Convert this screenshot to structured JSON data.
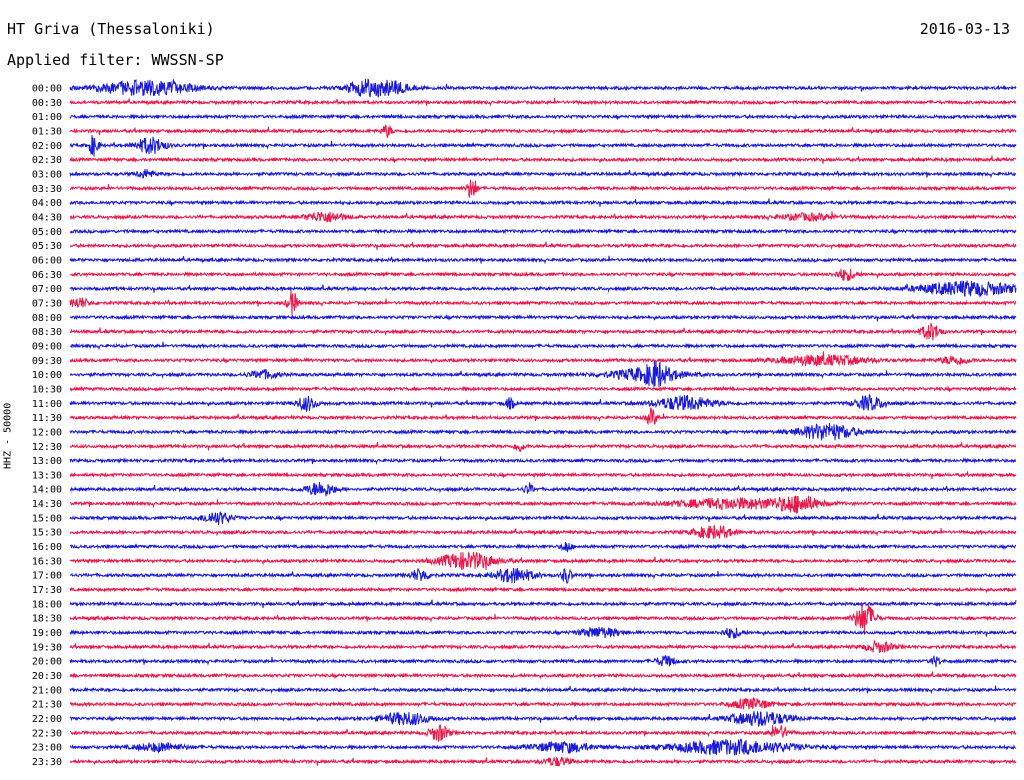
{
  "header": {
    "station": "HT Griva (Thessaloniki)",
    "date": "2016-03-13",
    "filter": "Applied filter: WWSSN-SP"
  },
  "axis": {
    "ylabel": "HHZ - 50000"
  },
  "colors": {
    "trace_a": "#1a1adc",
    "trace_b": "#f0184a"
  },
  "chart_data": {
    "type": "line",
    "description_type": "helicorder",
    "y_tick_labels": [
      "00:00",
      "00:30",
      "01:00",
      "01:30",
      "02:00",
      "02:30",
      "03:00",
      "03:30",
      "04:00",
      "04:30",
      "05:00",
      "05:30",
      "06:00",
      "06:30",
      "07:00",
      "07:30",
      "08:00",
      "08:30",
      "09:00",
      "09:30",
      "10:00",
      "10:30",
      "11:00",
      "11:30",
      "12:00",
      "12:30",
      "13:00",
      "13:30",
      "14:00",
      "14:30",
      "15:00",
      "15:30",
      "16:00",
      "16:30",
      "17:00",
      "17:30",
      "18:00",
      "18:30",
      "19:00",
      "19:30",
      "20:00",
      "20:30",
      "21:00",
      "21:30",
      "22:00",
      "22:30",
      "23:00",
      "23:30"
    ],
    "row_minutes": 30,
    "row_colors": [
      "#1a1adc",
      "#f0184a"
    ],
    "events": [
      {
        "row": 0,
        "t": 0.03,
        "amp": 7,
        "dur": 0.1
      },
      {
        "row": 0,
        "t": 0.29,
        "amp": 7,
        "dur": 0.04
      },
      {
        "row": 0,
        "t": 0.32,
        "amp": 6,
        "dur": 0.04
      },
      {
        "row": 3,
        "t": 0.33,
        "amp": 6,
        "dur": 0.01
      },
      {
        "row": 4,
        "t": 0.02,
        "amp": 10,
        "dur": 0.01
      },
      {
        "row": 4,
        "t": 0.07,
        "amp": 8,
        "dur": 0.03
      },
      {
        "row": 6,
        "t": 0.07,
        "amp": 4,
        "dur": 0.02
      },
      {
        "row": 7,
        "t": 0.42,
        "amp": 11,
        "dur": 0.01
      },
      {
        "row": 9,
        "t": 0.25,
        "amp": 5,
        "dur": 0.04
      },
      {
        "row": 9,
        "t": 0.75,
        "amp": 3,
        "dur": 0.06
      },
      {
        "row": 13,
        "t": 0.81,
        "amp": 6,
        "dur": 0.02
      },
      {
        "row": 14,
        "t": 0.9,
        "amp": 7,
        "dur": 0.1
      },
      {
        "row": 15,
        "t": 0.0,
        "amp": 5,
        "dur": 0.02
      },
      {
        "row": 15,
        "t": 0.23,
        "amp": 12,
        "dur": 0.01
      },
      {
        "row": 17,
        "t": 0.9,
        "amp": 8,
        "dur": 0.02
      },
      {
        "row": 19,
        "t": 0.75,
        "amp": 5,
        "dur": 0.09
      },
      {
        "row": 19,
        "t": 0.92,
        "amp": 4,
        "dur": 0.03
      },
      {
        "row": 20,
        "t": 0.19,
        "amp": 4,
        "dur": 0.03
      },
      {
        "row": 20,
        "t": 0.57,
        "amp": 6,
        "dur": 0.08
      },
      {
        "row": 20,
        "t": 0.61,
        "amp": 8,
        "dur": 0.02
      },
      {
        "row": 22,
        "t": 0.24,
        "amp": 7,
        "dur": 0.02
      },
      {
        "row": 22,
        "t": 0.46,
        "amp": 5,
        "dur": 0.01
      },
      {
        "row": 22,
        "t": 0.62,
        "amp": 7,
        "dur": 0.06
      },
      {
        "row": 22,
        "t": 0.83,
        "amp": 7,
        "dur": 0.03
      },
      {
        "row": 23,
        "t": 0.61,
        "amp": 9,
        "dur": 0.01
      },
      {
        "row": 24,
        "t": 0.77,
        "amp": 8,
        "dur": 0.06
      },
      {
        "row": 25,
        "t": 0.47,
        "amp": 5,
        "dur": 0.01
      },
      {
        "row": 28,
        "t": 0.25,
        "amp": 7,
        "dur": 0.03
      },
      {
        "row": 28,
        "t": 0.48,
        "amp": 5,
        "dur": 0.01
      },
      {
        "row": 29,
        "t": 0.64,
        "amp": 5,
        "dur": 0.13
      },
      {
        "row": 29,
        "t": 0.75,
        "amp": 7,
        "dur": 0.04
      },
      {
        "row": 30,
        "t": 0.14,
        "amp": 6,
        "dur": 0.03
      },
      {
        "row": 31,
        "t": 0.66,
        "amp": 6,
        "dur": 0.04
      },
      {
        "row": 32,
        "t": 0.52,
        "amp": 5,
        "dur": 0.01
      },
      {
        "row": 33,
        "t": 0.39,
        "amp": 8,
        "dur": 0.06
      },
      {
        "row": 34,
        "t": 0.36,
        "amp": 6,
        "dur": 0.02
      },
      {
        "row": 34,
        "t": 0.45,
        "amp": 7,
        "dur": 0.04
      },
      {
        "row": 34,
        "t": 0.52,
        "amp": 8,
        "dur": 0.01
      },
      {
        "row": 37,
        "t": 0.83,
        "amp": 16,
        "dur": 0.02
      },
      {
        "row": 38,
        "t": 0.54,
        "amp": 5,
        "dur": 0.04
      },
      {
        "row": 38,
        "t": 0.69,
        "amp": 5,
        "dur": 0.02
      },
      {
        "row": 39,
        "t": 0.84,
        "amp": 5,
        "dur": 0.03
      },
      {
        "row": 40,
        "t": 0.62,
        "amp": 5,
        "dur": 0.02
      },
      {
        "row": 40,
        "t": 0.91,
        "amp": 5,
        "dur": 0.01
      },
      {
        "row": 43,
        "t": 0.7,
        "amp": 5,
        "dur": 0.04
      },
      {
        "row": 44,
        "t": 0.33,
        "amp": 6,
        "dur": 0.05
      },
      {
        "row": 44,
        "t": 0.7,
        "amp": 7,
        "dur": 0.06
      },
      {
        "row": 45,
        "t": 0.38,
        "amp": 8,
        "dur": 0.02
      },
      {
        "row": 45,
        "t": 0.74,
        "amp": 6,
        "dur": 0.02
      },
      {
        "row": 46,
        "t": 0.07,
        "amp": 4,
        "dur": 0.05
      },
      {
        "row": 46,
        "t": 0.49,
        "amp": 5,
        "dur": 0.06
      },
      {
        "row": 46,
        "t": 0.64,
        "amp": 7,
        "dur": 0.12
      },
      {
        "row": 47,
        "t": 0.5,
        "amp": 4,
        "dur": 0.03
      }
    ]
  }
}
